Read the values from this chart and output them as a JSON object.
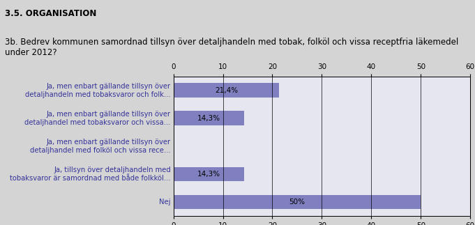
{
  "title1": "3.5. ORGANISATION",
  "title2": "3b. Bedrev kommunen samordnad tillsyn över detaljhandeln med tobak, folköl och vissa receptfria läkemedel\nunder 2012?",
  "categories": [
    "Ja, men enbart gällande tillsyn över\ndetaljhandeln med tobaksvaror och folk...",
    "Ja, men enbart gällande tillsyn över\ndetaljhandel med tobaksvaror och vissa...",
    "Ja, men enbart gällande tillsyn över\ndetaljhandel med folköl och vissa rece...",
    "Ja, tillsyn över detaljhandeln med\ntobaksvaror är samordnad med både folkköl...",
    "Nej"
  ],
  "values": [
    21.4,
    14.3,
    0.0,
    14.3,
    50.0
  ],
  "labels": [
    "21,4%",
    "14,3%",
    "",
    "14,3%",
    "50%"
  ],
  "bar_color_normal": "#8080c0",
  "bar_color_nej": "#8080c0",
  "xlim": [
    0,
    60
  ],
  "xticks": [
    0,
    10,
    20,
    30,
    40,
    50,
    60
  ],
  "background_color": "#d4d4d4",
  "plot_bg_color": "#e6e6f0",
  "title1_fontsize": 8.5,
  "title2_fontsize": 8.5,
  "tick_fontsize": 7.5,
  "label_fontsize": 7.5,
  "category_fontsize": 7.2
}
